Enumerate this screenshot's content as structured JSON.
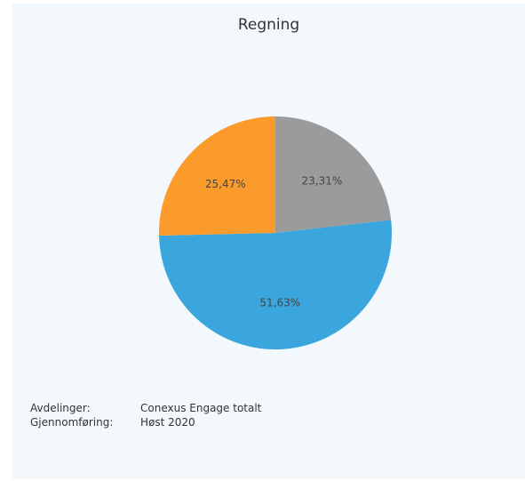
{
  "title": "Regning",
  "chart_data": {
    "type": "pie",
    "title": "Regning",
    "slices": [
      {
        "label": "23,31%",
        "value": 23.31,
        "color": "#9b9b9b"
      },
      {
        "label": "51,63%",
        "value": 51.63,
        "color": "#3aa6dd"
      },
      {
        "label": "25,47%",
        "value": 25.47,
        "color": "#fb9b2b"
      }
    ]
  },
  "meta": {
    "avdelinger_label": "Avdelinger:",
    "avdelinger_value": "Conexus Engage totalt",
    "gjennomforing_label": "Gjennomføring:",
    "gjennomforing_value": "Høst 2020"
  }
}
